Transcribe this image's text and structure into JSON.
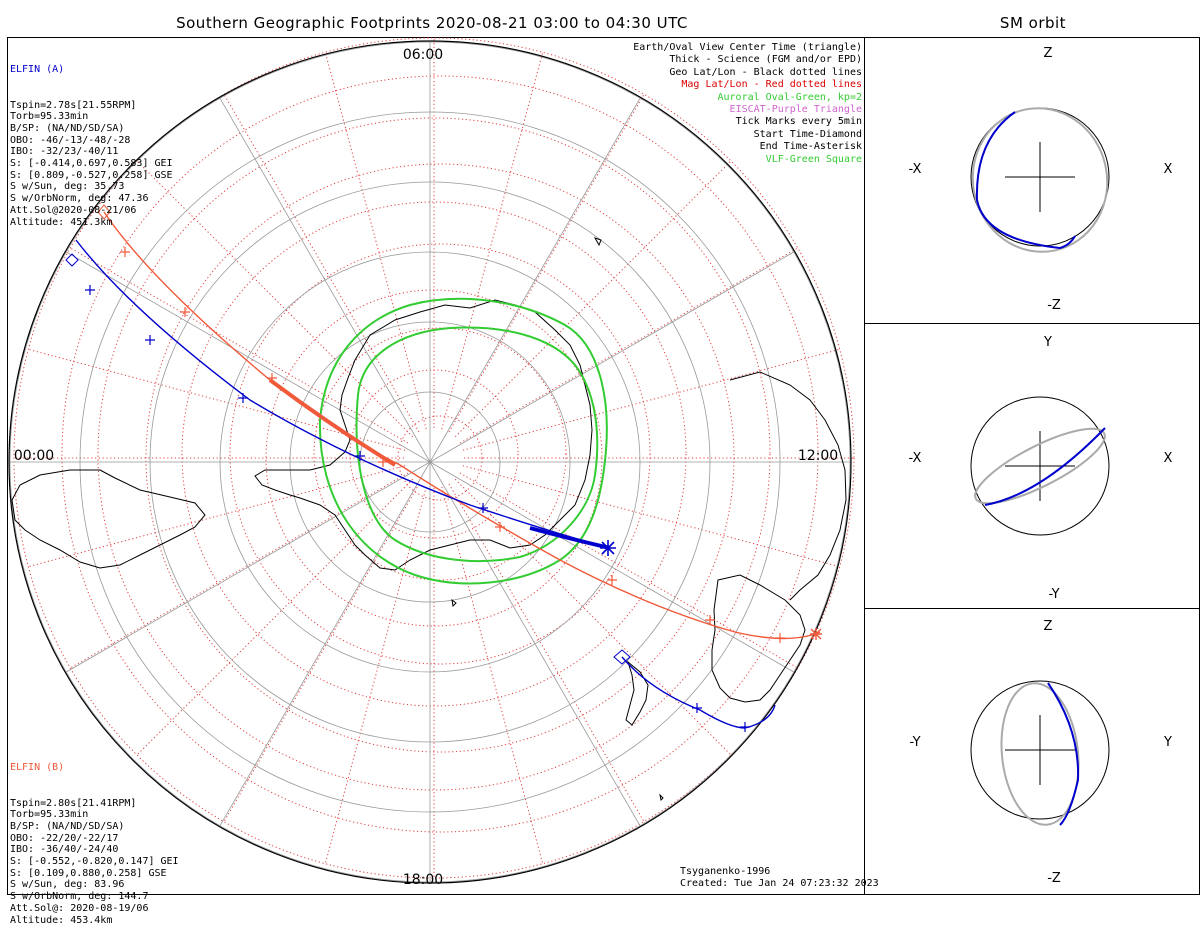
{
  "main_title": "Southern Geographic Footprints 2020-08-21 03:00 to 04:30 UTC",
  "orbit_title": "SM orbit",
  "map_labels": {
    "top": "06:00",
    "left": "00:00",
    "right": "12:00",
    "bottom": "18:00"
  },
  "colors": {
    "elfin_a": "#0000cc",
    "elfin_b": "#f05a3a",
    "mag_grid": "#e04040",
    "geo_grid": "#000000",
    "oval": "#33cc33",
    "eiscat": "#cc66cc",
    "grey_orbit": "#aaaaaa"
  },
  "elfin_a": {
    "title": "ELFIN (A)",
    "lines": [
      "Tspin=2.78s[21.55RPM]",
      "Torb=95.33min",
      "B/SP: (NA/ND/SD/SA)",
      "OBO: -46/-13/-48/-28",
      "IBO: -32/23/-40/11",
      "S: [-0.414,0.697,0.583] GEI",
      "S: [0.809,-0.527,0.258] GSE",
      "S w/Sun, deg: 35.73",
      "S w/OrbNorm, deg: 47.36",
      "Att.Sol@2020-08-21/06",
      "Altitude: 451.3km"
    ]
  },
  "elfin_b": {
    "title": "ELFIN (B)",
    "lines": [
      "Tspin=2.80s[21.41RPM]",
      "Torb=95.33min",
      "B/SP: (NA/ND/SD/SA)",
      "OBO: -22/20/-22/17",
      "IBO: -36/40/-24/40",
      "S: [-0.552,-0.820,0.147] GEI",
      "S: [0.109,0.880,0.258] GSE",
      "S w/Sun, deg: 83.96",
      "S w/OrbNorm, deg: 144.7",
      "Att.Sol@: 2020-08-19/06",
      "Altitude: 453.4km"
    ]
  },
  "legend": [
    {
      "text": "Earth/Oval View Center Time (triangle)",
      "color": "#000000"
    },
    {
      "text": "Thick - Science (FGM and/or EPD)",
      "color": "#000000"
    },
    {
      "text": "Geo Lat/Lon - Black dotted lines",
      "color": "#000000"
    },
    {
      "text": "Mag Lat/Lon - Red dotted lines",
      "color": "#dd0000"
    },
    {
      "text": "Auroral Oval-Green, kp=2",
      "color": "#33cc33"
    },
    {
      "text": "EISCAT-Purple Triangle",
      "color": "#cc66cc"
    },
    {
      "text": "Tick Marks every 5min",
      "color": "#000000"
    },
    {
      "text": "Start Time-Diamond",
      "color": "#000000"
    },
    {
      "text": "End Time-Asterisk",
      "color": "#000000"
    },
    {
      "text": "VLF-Green Square",
      "color": "#33cc33"
    }
  ],
  "credits": {
    "model": "Tsyganenko-1996",
    "created": "Created: Tue Jan 24 07:23:32 2023"
  },
  "orbit_panels": [
    {
      "top": "Z",
      "bottom": "-Z",
      "left": "-X",
      "right": "X"
    },
    {
      "top": "Y",
      "bottom": "-Y",
      "left": "-X",
      "right": "X"
    },
    {
      "top": "Z",
      "bottom": "-Z",
      "left": "-Y",
      "right": "Y"
    }
  ]
}
